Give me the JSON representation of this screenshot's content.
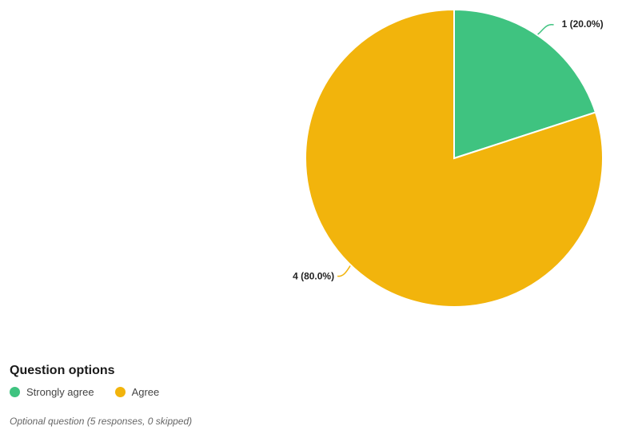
{
  "chart_data": {
    "type": "pie",
    "categories": [
      "Strongly agree",
      "Agree"
    ],
    "values": [
      1,
      4
    ],
    "percentages": [
      20.0,
      80.0
    ],
    "slice_labels": [
      "1 (20.0%)",
      "4 (80.0%)"
    ],
    "colors": [
      "#3fc380",
      "#f2b40c"
    ],
    "legend_title": "Question options",
    "legend_position": "bottom-left"
  },
  "footnote": "Optional question (5 responses, 0 skipped)"
}
